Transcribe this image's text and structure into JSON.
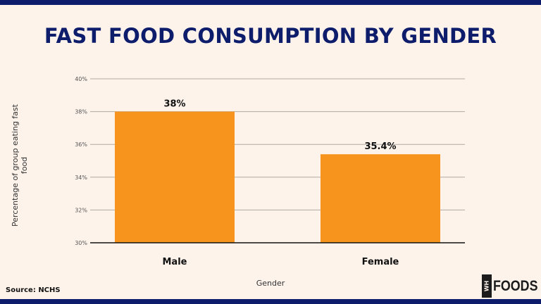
{
  "chart_data": {
    "type": "bar",
    "title": "FAST FOOD CONSUMPTION BY GENDER",
    "categories": [
      "Male",
      "Female"
    ],
    "values": [
      38,
      35.4
    ],
    "data_labels": [
      "38%",
      "35.4%"
    ],
    "xlabel": "Gender",
    "ylabel": "Percentage of group eating fast food",
    "ylim": [
      30,
      40
    ],
    "yticks": [
      30,
      32,
      34,
      36,
      38,
      40
    ],
    "ytick_labels": [
      "30%",
      "32%",
      "34%",
      "36%",
      "38%",
      "40%"
    ],
    "grid": true,
    "bar_color": "#f7941d"
  },
  "source": "Source: NCHS",
  "logo": {
    "box_text": "WH",
    "text": "FOODS"
  },
  "colors": {
    "brand": "#0e1d6b",
    "background": "#fdf3eb"
  }
}
